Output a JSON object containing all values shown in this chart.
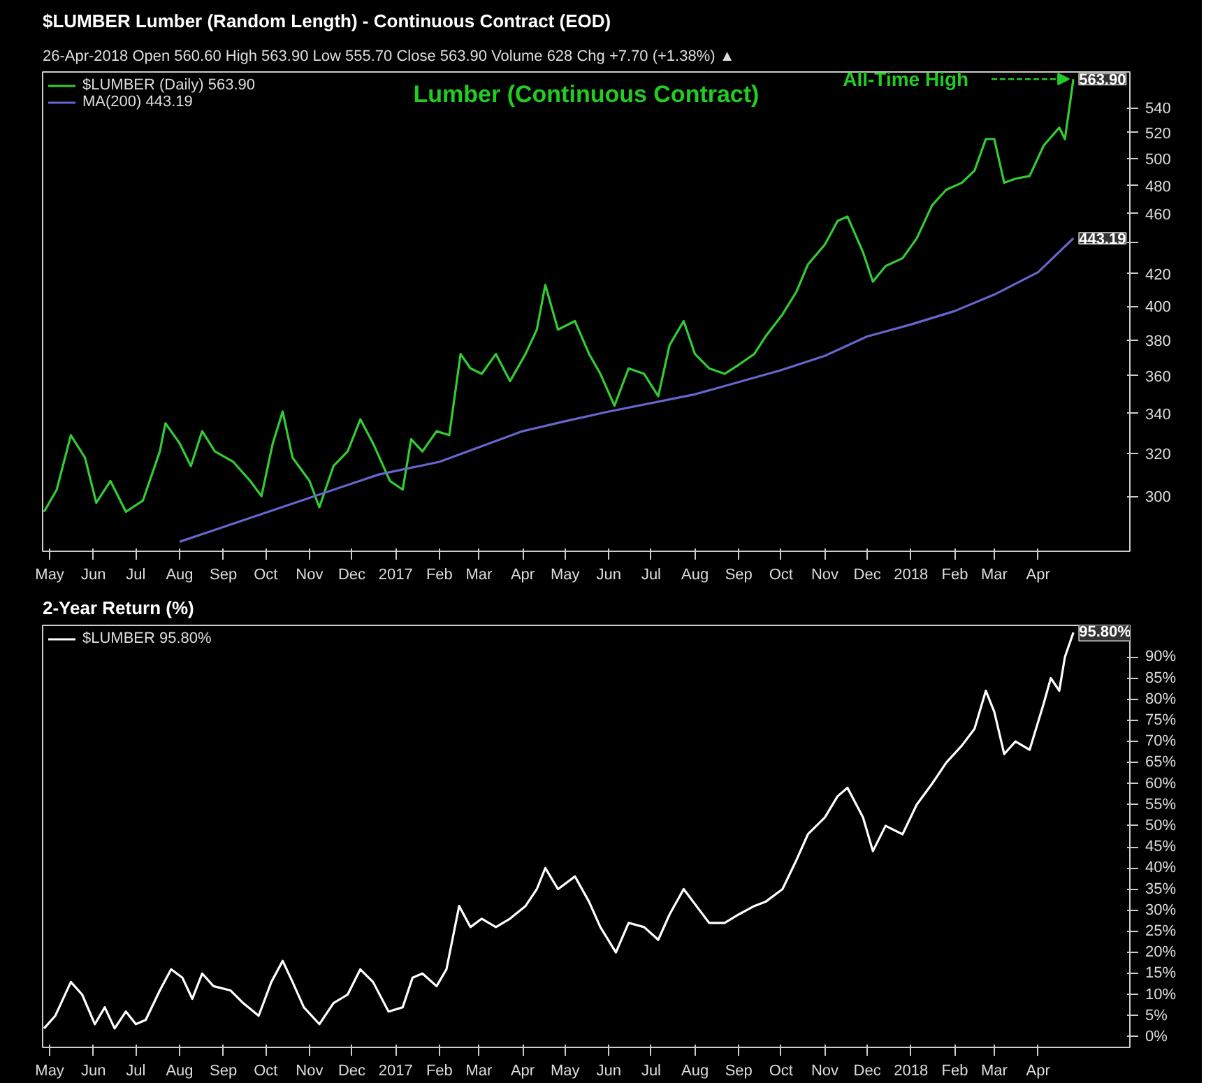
{
  "chart_data": [
    {
      "type": "line",
      "title": "$LUMBER Lumber (Random Length) - Continuous Contract (EOD)",
      "subtitle": "26-Apr-2018    Open 560.60  High 563.90  Low 555.70  Close 563.90  Volume 628  Chg +7.70 (+1.38%) ▲",
      "log": "y",
      "grid": false,
      "legend": "top left",
      "marker": "none",
      "line_style": "solid",
      "xlim": [
        "2016-04-26",
        "2018-06-05"
      ],
      "ylim": [
        276,
        570
      ],
      "xticks": [
        {
          "value": "2016-05-01",
          "label": "May"
        },
        {
          "value": "2016-06-01",
          "label": "Jun"
        },
        {
          "value": "2016-07-01",
          "label": "Jul"
        },
        {
          "value": "2016-08-01",
          "label": "Aug"
        },
        {
          "value": "2016-09-01",
          "label": "Sep"
        },
        {
          "value": "2016-10-01",
          "label": "Oct"
        },
        {
          "value": "2016-11-01",
          "label": "Nov"
        },
        {
          "value": "2016-12-01",
          "label": "Dec"
        },
        {
          "value": "2017-01-01",
          "label": "2017"
        },
        {
          "value": "2017-02-01",
          "label": "Feb"
        },
        {
          "value": "2017-03-01",
          "label": "Mar"
        },
        {
          "value": "2017-04-01",
          "label": "Apr"
        },
        {
          "value": "2017-05-01",
          "label": "May"
        },
        {
          "value": "2017-06-01",
          "label": "Jun"
        },
        {
          "value": "2017-07-01",
          "label": "Jul"
        },
        {
          "value": "2017-08-01",
          "label": "Aug"
        },
        {
          "value": "2017-09-01",
          "label": "Sep"
        },
        {
          "value": "2017-10-01",
          "label": "Oct"
        },
        {
          "value": "2017-11-01",
          "label": "Nov"
        },
        {
          "value": "2017-12-01",
          "label": "Dec"
        },
        {
          "value": "2018-01-01",
          "label": "2018"
        },
        {
          "value": "2018-02-01",
          "label": "Feb"
        },
        {
          "value": "2018-03-01",
          "label": "Mar"
        },
        {
          "value": "2018-04-01",
          "label": "Apr"
        }
      ],
      "yticks": [
        300,
        320,
        340,
        360,
        380,
        400,
        420,
        {
          "value": 440,
          "label": null
        },
        460,
        480,
        500,
        520,
        540
      ],
      "annotations": [
        "Lumber (Continuous Contract)",
        {
          "text": "All-Time High",
          "x": "2018-04-26",
          "y": 563.9
        },
        {
          "text": "563.90",
          "x": "2018-04-26",
          "y": 563.9
        },
        {
          "text": "443.19",
          "x": "2018-04-26",
          "y": 443.19
        }
      ],
      "series": [
        {
          "name": "$LUMBER (Daily) 563.90",
          "color": "#33cc33",
          "x": [
            "2016-04-27",
            "2016-05-06",
            "2016-05-16",
            "2016-05-26",
            "2016-06-03",
            "2016-06-13",
            "2016-06-24",
            "2016-07-06",
            "2016-07-18",
            "2016-07-22",
            "2016-08-01",
            "2016-08-09",
            "2016-08-17",
            "2016-08-26",
            "2016-09-08",
            "2016-09-20",
            "2016-09-28",
            "2016-10-06",
            "2016-10-13",
            "2016-10-20",
            "2016-11-01",
            "2016-11-08",
            "2016-11-18",
            "2016-11-28",
            "2016-12-07",
            "2016-12-16",
            "2016-12-28",
            "2017-01-06",
            "2017-01-12",
            "2017-01-20",
            "2017-01-30",
            "2017-02-08",
            "2017-02-16",
            "2017-02-23",
            "2017-03-03",
            "2017-03-13",
            "2017-03-23",
            "2017-04-03",
            "2017-04-11",
            "2017-04-17",
            "2017-04-26",
            "2017-05-08",
            "2017-05-18",
            "2017-05-26",
            "2017-06-05",
            "2017-06-15",
            "2017-06-26",
            "2017-07-06",
            "2017-07-14",
            "2017-07-24",
            "2017-08-01",
            "2017-08-11",
            "2017-08-22",
            "2017-09-01",
            "2017-09-12",
            "2017-09-20",
            "2017-10-02",
            "2017-10-12",
            "2017-10-20",
            "2017-11-01",
            "2017-11-10",
            "2017-11-17",
            "2017-11-28",
            "2017-12-05",
            "2017-12-14",
            "2017-12-26",
            "2018-01-05",
            "2018-01-16",
            "2018-01-26",
            "2018-02-06",
            "2018-02-15",
            "2018-02-23",
            "2018-03-01",
            "2018-03-08",
            "2018-03-16",
            "2018-03-26",
            "2018-04-05",
            "2018-04-16",
            "2018-04-20",
            "2018-04-26"
          ],
          "values": [
            293,
            303,
            329,
            318,
            297,
            307,
            293,
            298,
            321,
            335,
            325,
            314,
            331,
            321,
            316,
            307,
            300,
            325,
            341,
            318,
            307,
            295,
            314,
            321,
            337,
            325,
            307,
            303,
            327,
            321,
            331,
            329,
            372,
            364,
            361,
            372,
            357,
            372,
            386,
            413,
            386,
            391,
            372,
            361,
            344,
            364,
            361,
            349,
            377,
            391,
            372,
            364,
            361,
            366,
            372,
            382,
            395,
            409,
            426,
            439,
            455,
            458,
            434,
            415,
            425,
            430,
            443,
            466,
            477,
            482,
            491,
            515,
            515,
            482,
            485,
            487,
            510,
            524,
            515,
            563.9
          ]
        },
        {
          "name": "MA(200) 443.19",
          "color": "#6666cc",
          "x": [
            "2016-08-01",
            "2016-12-20",
            "2017-02-01",
            "2017-04-01",
            "2017-05-01",
            "2017-06-01",
            "2017-08-01",
            "2017-10-01",
            "2017-11-01",
            "2017-12-01",
            "2018-01-01",
            "2018-02-01",
            "2018-03-01",
            "2018-04-01",
            "2018-04-26"
          ],
          "values": [
            280,
            310,
            316,
            331,
            336,
            341,
            350,
            363,
            371,
            382,
            389,
            397,
            407,
            421,
            443.19
          ]
        }
      ]
    },
    {
      "type": "line",
      "title": "2-Year Return (%)",
      "grid": false,
      "legend": "top left",
      "marker": "none",
      "line_style": "solid",
      "xlim": [
        "2016-04-26",
        "2018-06-05"
      ],
      "ylim": [
        -2.5,
        97.5
      ],
      "xticks": [
        {
          "value": "2016-05-01",
          "label": "May"
        },
        {
          "value": "2016-06-01",
          "label": "Jun"
        },
        {
          "value": "2016-07-01",
          "label": "Jul"
        },
        {
          "value": "2016-08-01",
          "label": "Aug"
        },
        {
          "value": "2016-09-01",
          "label": "Sep"
        },
        {
          "value": "2016-10-01",
          "label": "Oct"
        },
        {
          "value": "2016-11-01",
          "label": "Nov"
        },
        {
          "value": "2016-12-01",
          "label": "Dec"
        },
        {
          "value": "2017-01-01",
          "label": "2017"
        },
        {
          "value": "2017-02-01",
          "label": "Feb"
        },
        {
          "value": "2017-03-01",
          "label": "Mar"
        },
        {
          "value": "2017-04-01",
          "label": "Apr"
        },
        {
          "value": "2017-05-01",
          "label": "May"
        },
        {
          "value": "2017-06-01",
          "label": "Jun"
        },
        {
          "value": "2017-07-01",
          "label": "Jul"
        },
        {
          "value": "2017-08-01",
          "label": "Aug"
        },
        {
          "value": "2017-09-01",
          "label": "Sep"
        },
        {
          "value": "2017-10-01",
          "label": "Oct"
        },
        {
          "value": "2017-11-01",
          "label": "Nov"
        },
        {
          "value": "2017-12-01",
          "label": "Dec"
        },
        {
          "value": "2018-01-01",
          "label": "2018"
        },
        {
          "value": "2018-02-01",
          "label": "Feb"
        },
        {
          "value": "2018-03-01",
          "label": "Mar"
        },
        {
          "value": "2018-04-01",
          "label": "Apr"
        }
      ],
      "yticks": [
        {
          "value": 0,
          "label": "0%"
        },
        {
          "value": 5,
          "label": "5%"
        },
        {
          "value": 10,
          "label": "10%"
        },
        {
          "value": 15,
          "label": "15%"
        },
        {
          "value": 20,
          "label": "20%"
        },
        {
          "value": 25,
          "label": "25%"
        },
        {
          "value": 30,
          "label": "30%"
        },
        {
          "value": 35,
          "label": "35%"
        },
        {
          "value": 40,
          "label": "40%"
        },
        {
          "value": 45,
          "label": "45%"
        },
        {
          "value": 50,
          "label": "50%"
        },
        {
          "value": 55,
          "label": "55%"
        },
        {
          "value": 60,
          "label": "60%"
        },
        {
          "value": 65,
          "label": "65%"
        },
        {
          "value": 70,
          "label": "70%"
        },
        {
          "value": 75,
          "label": "75%"
        },
        {
          "value": 80,
          "label": "80%"
        },
        {
          "value": 85,
          "label": "85%"
        },
        {
          "value": 90,
          "label": "90%"
        }
      ],
      "annotations": [
        {
          "text": "95.80%",
          "x": "2018-04-26",
          "y": 95.8
        }
      ],
      "series": [
        {
          "name": "$LUMBER 95.80%",
          "color": "#ffffff",
          "x": [
            "2016-04-27",
            "2016-05-05",
            "2016-05-16",
            "2016-05-24",
            "2016-06-02",
            "2016-06-09",
            "2016-06-16",
            "2016-06-24",
            "2016-07-01",
            "2016-07-08",
            "2016-07-18",
            "2016-07-26",
            "2016-08-03",
            "2016-08-10",
            "2016-08-17",
            "2016-08-25",
            "2016-09-06",
            "2016-09-15",
            "2016-09-26",
            "2016-10-05",
            "2016-10-13",
            "2016-10-20",
            "2016-10-28",
            "2016-11-08",
            "2016-11-18",
            "2016-11-28",
            "2016-12-07",
            "2016-12-16",
            "2016-12-27",
            "2017-01-06",
            "2017-01-13",
            "2017-01-20",
            "2017-01-30",
            "2017-02-06",
            "2017-02-15",
            "2017-02-23",
            "2017-03-03",
            "2017-03-13",
            "2017-03-23",
            "2017-04-03",
            "2017-04-11",
            "2017-04-17",
            "2017-04-26",
            "2017-05-08",
            "2017-05-18",
            "2017-05-26",
            "2017-06-06",
            "2017-06-15",
            "2017-06-26",
            "2017-07-06",
            "2017-07-14",
            "2017-07-24",
            "2017-08-02",
            "2017-08-11",
            "2017-08-22",
            "2017-09-01",
            "2017-09-12",
            "2017-09-20",
            "2017-10-02",
            "2017-10-12",
            "2017-10-20",
            "2017-11-01",
            "2017-11-10",
            "2017-11-17",
            "2017-11-28",
            "2017-12-05",
            "2017-12-14",
            "2017-12-26",
            "2018-01-05",
            "2018-01-16",
            "2018-01-26",
            "2018-02-06",
            "2018-02-15",
            "2018-02-23",
            "2018-03-01",
            "2018-03-08",
            "2018-03-16",
            "2018-03-26",
            "2018-04-05",
            "2018-04-10",
            "2018-04-16",
            "2018-04-20",
            "2018-04-26"
          ],
          "values": [
            2,
            5,
            13,
            10,
            3,
            7,
            2,
            6,
            3,
            4,
            11,
            16,
            14,
            9,
            15,
            12,
            11,
            8,
            5,
            13,
            18,
            13,
            7,
            3,
            8,
            10,
            16,
            13,
            6,
            7,
            14,
            15,
            12,
            16,
            31,
            26,
            28,
            26,
            28,
            31,
            35,
            40,
            35,
            38,
            32,
            26,
            20,
            27,
            26,
            23,
            29,
            35,
            31,
            27,
            27,
            29,
            31,
            32,
            35,
            42,
            48,
            52,
            57,
            59,
            52,
            44,
            50,
            48,
            55,
            60,
            65,
            69,
            73,
            82,
            77,
            67,
            70,
            68,
            79,
            85,
            82,
            90,
            95.8
          ]
        }
      ]
    }
  ]
}
